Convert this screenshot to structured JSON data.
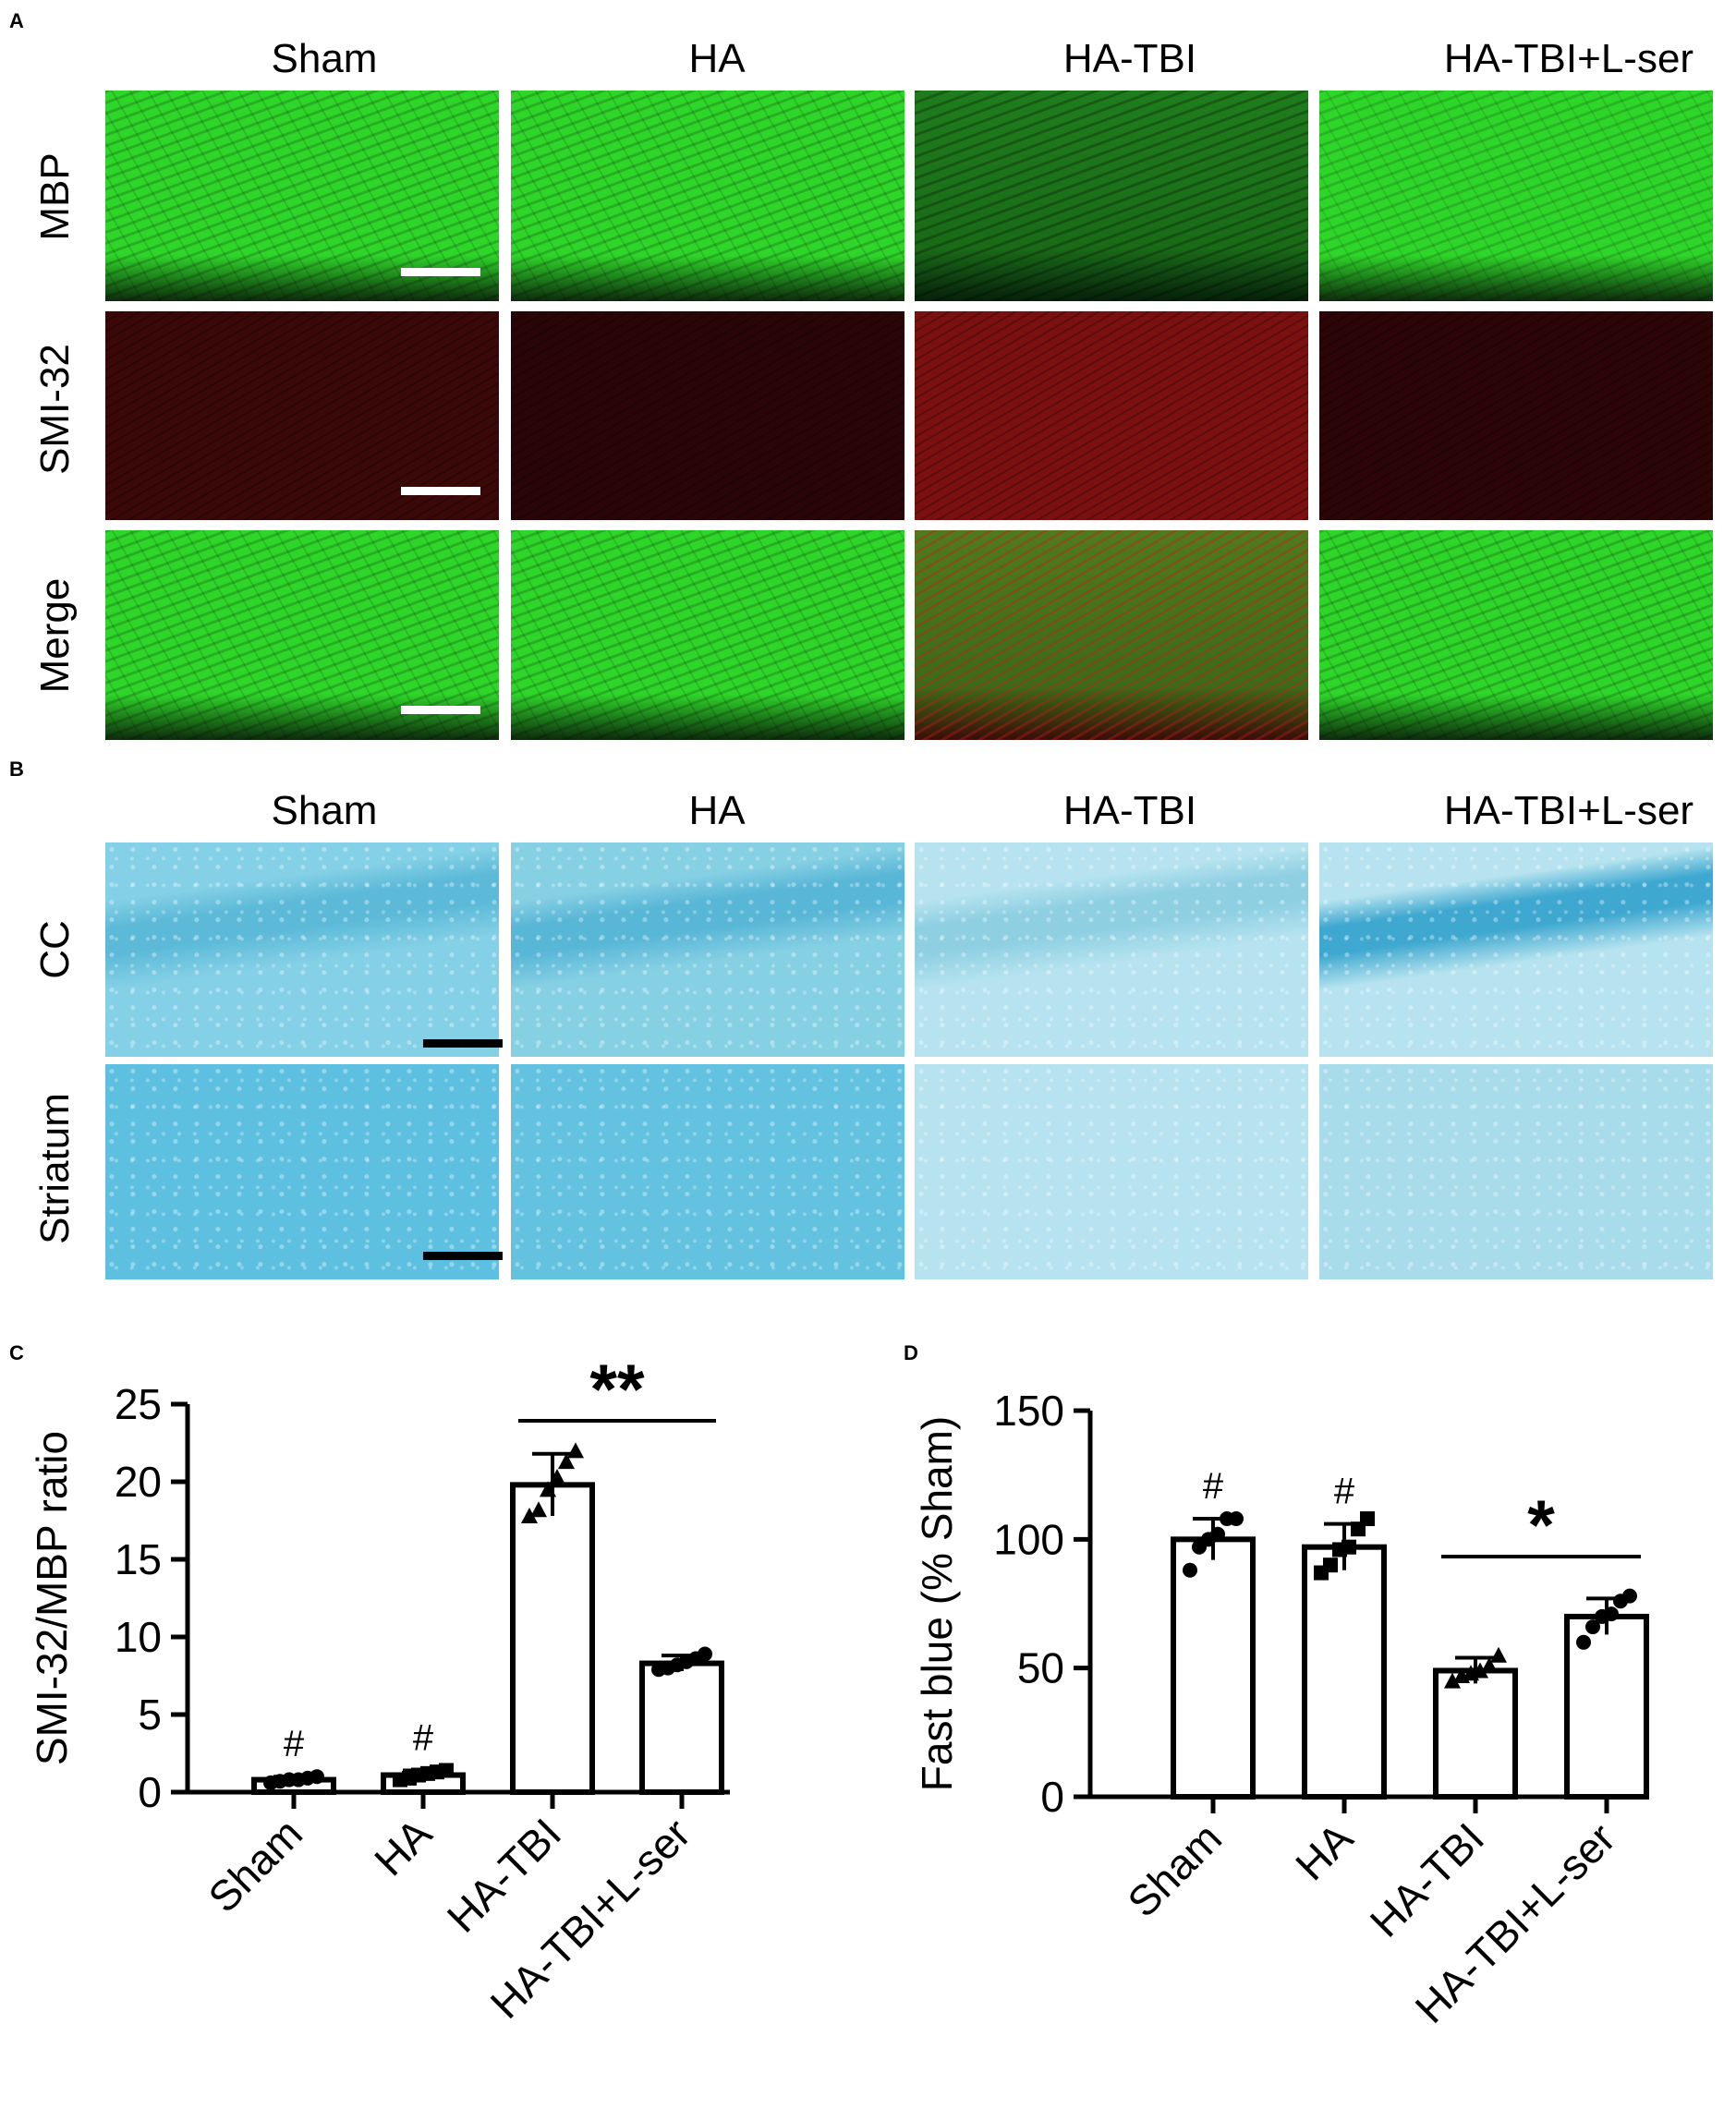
{
  "panels": {
    "A": {
      "letter": "A",
      "columns": [
        "Sham",
        "HA",
        "HA-TBI",
        "HA-TBI+L-ser"
      ],
      "rows": [
        "MBP",
        "SMI-32",
        "Merge"
      ]
    },
    "B": {
      "letter": "B",
      "columns": [
        "Sham",
        "HA",
        "HA-TBI",
        "HA-TBI+L-ser"
      ],
      "rows": [
        "CC",
        "Striatum"
      ]
    }
  },
  "colors": {
    "mbp_green": "#2fd62a",
    "mbp_dark": "#1f7d1c",
    "smi_red": "#4a0808",
    "smi_red_bright": "#7a1010",
    "fast_blue": "#6fc7df",
    "fast_blue_light": "#b6e3ef",
    "scalebar_white": "#ffffff",
    "scalebar_black": "#000000"
  },
  "chart_data": [
    {
      "panel": "C",
      "type": "bar",
      "categories": [
        "Sham",
        "HA",
        "HA-TBI",
        "HA-TBI+L-ser"
      ],
      "values": [
        0.8,
        1.1,
        19.8,
        8.3
      ],
      "errors": [
        0.2,
        0.3,
        2.0,
        0.5
      ],
      "points": [
        [
          0.6,
          0.7,
          0.8,
          0.8,
          0.9,
          1.0
        ],
        [
          0.8,
          0.9,
          1.1,
          1.2,
          1.3,
          1.4
        ],
        [
          17.8,
          18.2,
          19.5,
          20.3,
          21.3,
          22.0
        ],
        [
          7.9,
          8.0,
          8.2,
          8.4,
          8.6,
          8.9
        ]
      ],
      "marker": [
        "circle",
        "square",
        "triangle",
        "circle"
      ],
      "ylabel": "SMI-32/MBP ratio",
      "xlabel": "",
      "ylim": [
        0,
        25
      ],
      "yticks": [
        0,
        5,
        10,
        15,
        20,
        25
      ],
      "significance": [
        {
          "target": "Sham",
          "symbol": "#"
        },
        {
          "target": "HA",
          "symbol": "#"
        }
      ],
      "brackets": [
        {
          "from": "HA-TBI",
          "to": "HA-TBI+L-ser",
          "symbol": "**"
        }
      ]
    },
    {
      "panel": "D",
      "type": "bar",
      "categories": [
        "Sham",
        "HA",
        "HA-TBI",
        "HA-TBI+L-ser"
      ],
      "values": [
        100,
        97,
        49,
        70
      ],
      "errors": [
        8,
        9,
        5,
        7
      ],
      "points": [
        [
          88,
          97,
          100,
          102,
          108,
          108
        ],
        [
          87,
          90,
          96,
          97,
          104,
          108
        ],
        [
          45,
          47,
          48,
          49,
          51,
          55
        ],
        [
          60,
          66,
          70,
          71,
          76,
          78
        ]
      ],
      "marker": [
        "circle",
        "square",
        "triangle",
        "circle"
      ],
      "ylabel": "Fast blue (% Sham)",
      "xlabel": "",
      "ylim": [
        0,
        150
      ],
      "yticks": [
        0,
        50,
        100,
        150
      ],
      "significance": [
        {
          "target": "Sham",
          "symbol": "#"
        },
        {
          "target": "HA",
          "symbol": "#"
        }
      ],
      "brackets": [
        {
          "from": "HA-TBI",
          "to": "HA-TBI+L-ser",
          "symbol": "*"
        }
      ]
    }
  ],
  "chart_letters": [
    "C",
    "D"
  ]
}
